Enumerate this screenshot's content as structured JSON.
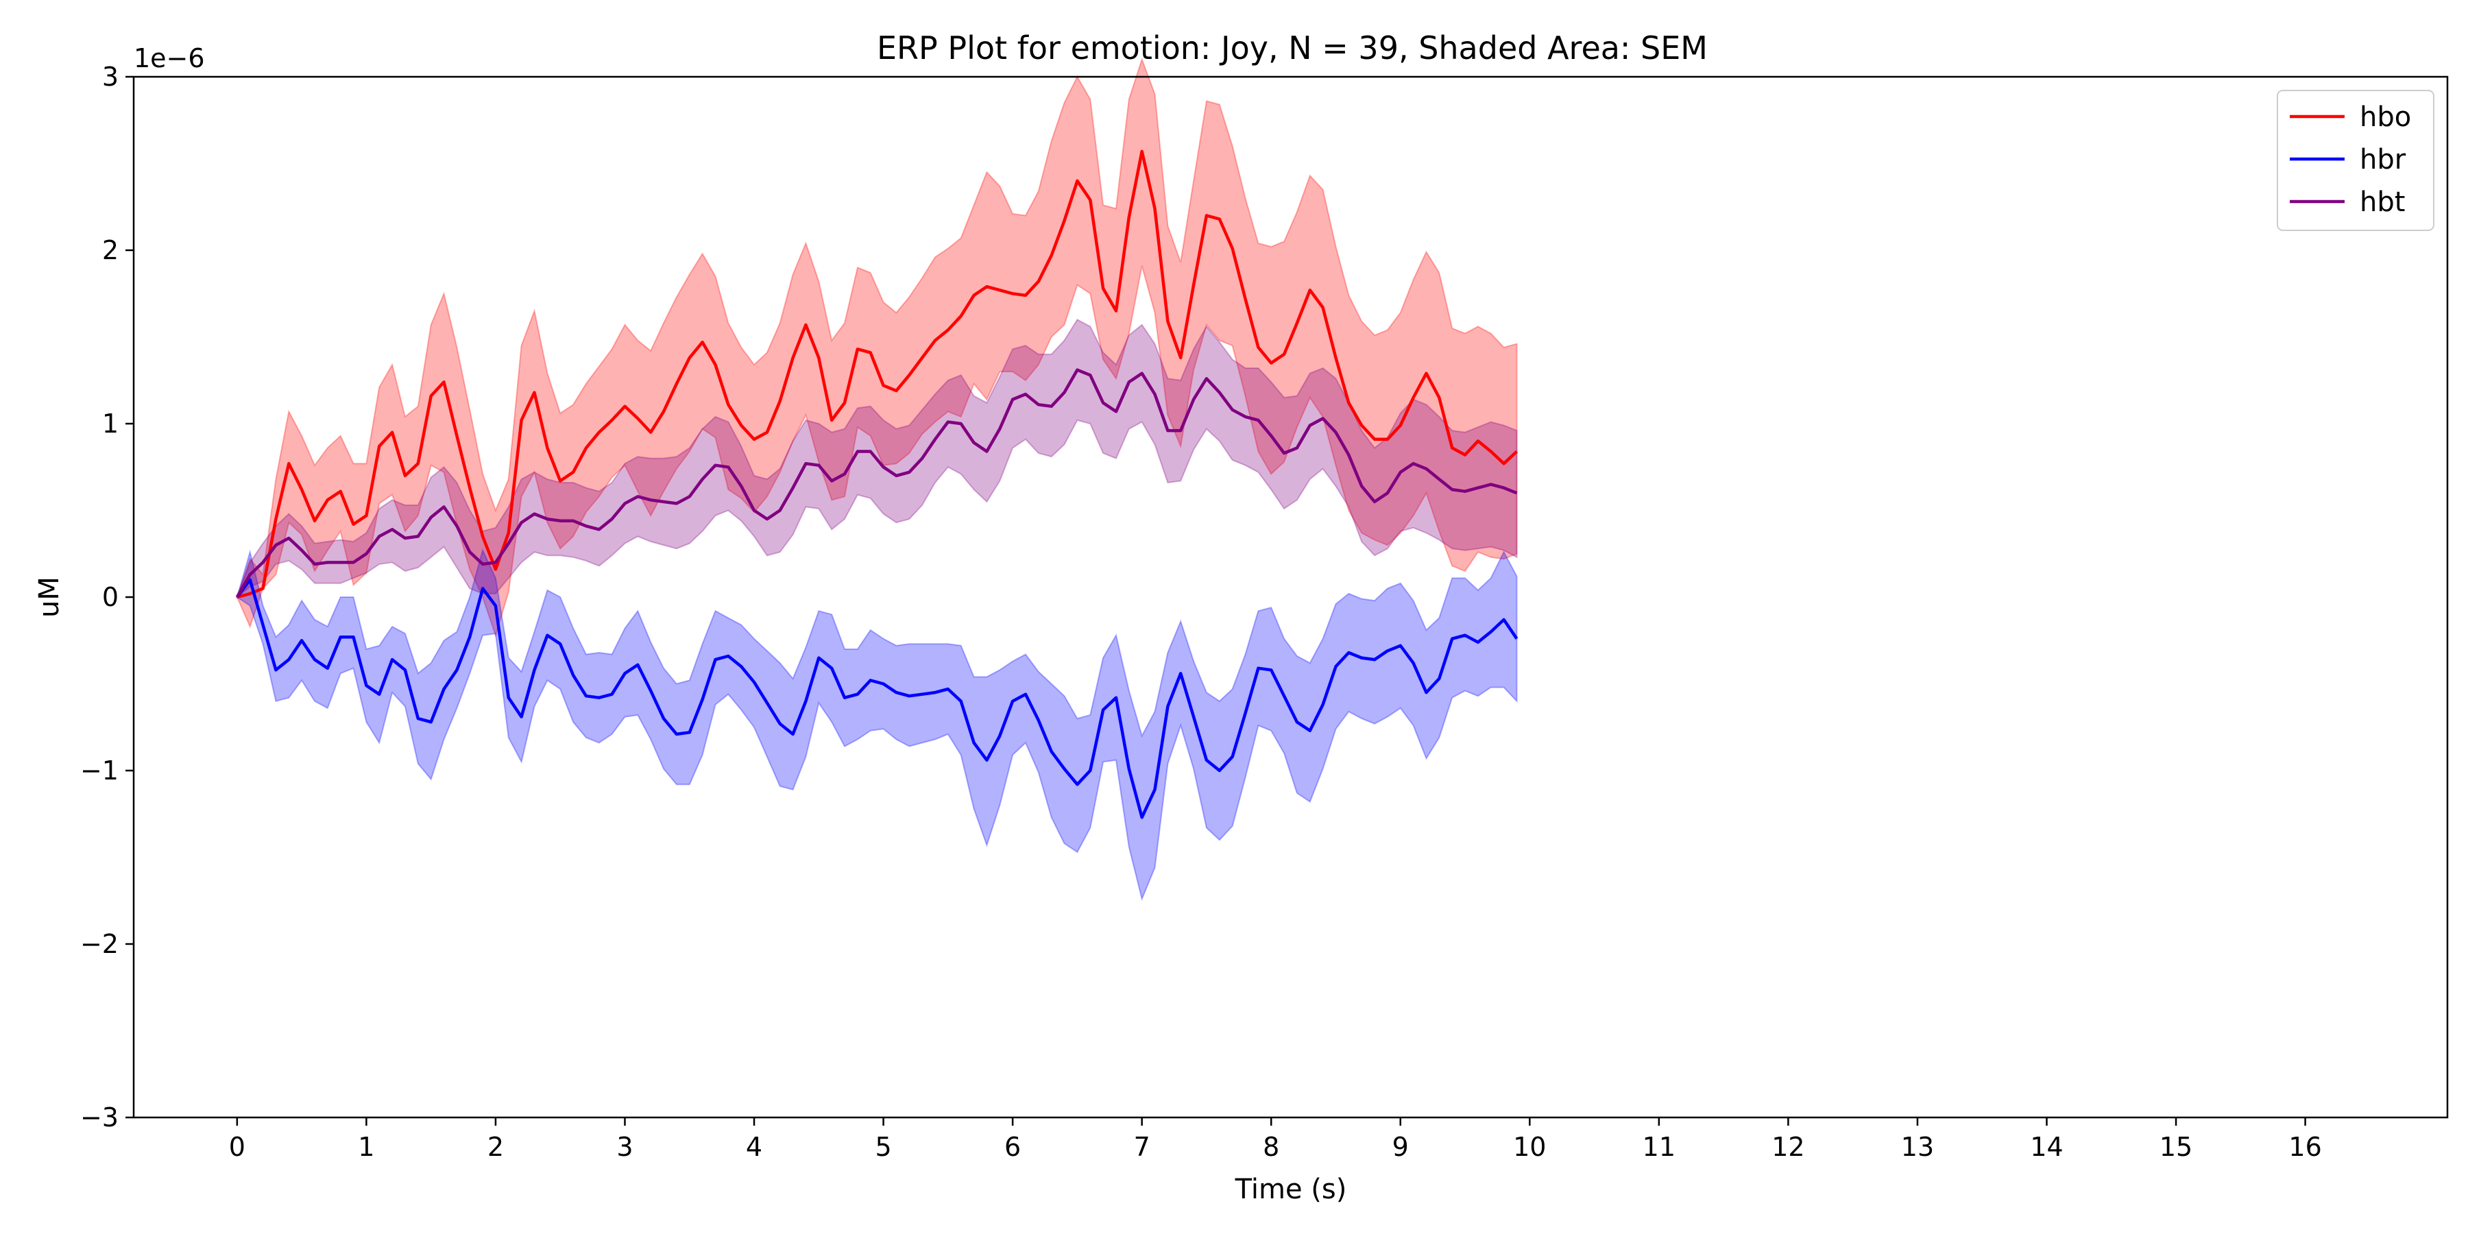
{
  "chart_data": {
    "type": "line",
    "title": "ERP Plot for emotion: Joy, N = 39, Shaded Area: SEM",
    "xlabel": "Time (s)",
    "ylabel": "uM",
    "y_offset_label": "1e−6",
    "xlim": [
      -0.8,
      17.1
    ],
    "ylim": [
      -3,
      3
    ],
    "x_ticks": [
      0,
      1,
      2,
      3,
      4,
      5,
      6,
      7,
      8,
      9,
      10,
      11,
      12,
      13,
      14,
      15,
      16
    ],
    "x_tick_labels": [
      "0",
      "1",
      "2",
      "3",
      "4",
      "5",
      "6",
      "7",
      "8",
      "9",
      "10",
      "11",
      "12",
      "13",
      "14",
      "15",
      "16"
    ],
    "y_ticks": [
      -3,
      -2,
      -1,
      0,
      1,
      2,
      3
    ],
    "y_tick_labels": [
      "−3",
      "−2",
      "−1",
      "0",
      "1",
      "2",
      "3"
    ],
    "grid": false,
    "legend_position": "top-right",
    "x_start": 0,
    "x_step": 0.1,
    "series": [
      {
        "name": "hbo",
        "color": "#ff0000",
        "mean": [
          0,
          0.02,
          0.05,
          0.45,
          0.77,
          0.62,
          0.44,
          0.56,
          0.61,
          0.42,
          0.47,
          0.87,
          0.95,
          0.7,
          0.77,
          1.16,
          1.24,
          0.93,
          0.63,
          0.35,
          0.16,
          0.37,
          1.02,
          1.18,
          0.86,
          0.67,
          0.72,
          0.86,
          0.95,
          1.02,
          1.1,
          1.03,
          0.95,
          1.07,
          1.23,
          1.38,
          1.47,
          1.34,
          1.11,
          0.99,
          0.91,
          0.95,
          1.13,
          1.38,
          1.57,
          1.38,
          1.02,
          1.12,
          1.43,
          1.41,
          1.22,
          1.19,
          1.28,
          1.38,
          1.48,
          1.54,
          1.62,
          1.74,
          1.79,
          1.77,
          1.75,
          1.74,
          1.82,
          1.97,
          2.17,
          2.4,
          2.29,
          1.78,
          1.65,
          2.19,
          2.57,
          2.24,
          1.59,
          1.38,
          1.8,
          2.2,
          2.18,
          2.01,
          1.72,
          1.44,
          1.35,
          1.4,
          1.58,
          1.77,
          1.67,
          1.38,
          1.12,
          0.99,
          0.91,
          0.91,
          0.99,
          1.15,
          1.29,
          1.15,
          0.86,
          0.82,
          0.9,
          0.84,
          0.77,
          0.84
        ],
        "lower": [
          0,
          -0.17,
          0.05,
          0.13,
          0.43,
          0.36,
          0.15,
          0.27,
          0.38,
          0.07,
          0.14,
          0.54,
          0.59,
          0.38,
          0.47,
          0.76,
          0.72,
          0.42,
          0.16,
          0.0,
          -0.22,
          0.03,
          0.58,
          0.72,
          0.43,
          0.28,
          0.35,
          0.49,
          0.58,
          0.69,
          0.76,
          0.61,
          0.47,
          0.61,
          0.74,
          0.84,
          0.97,
          0.92,
          0.62,
          0.57,
          0.49,
          0.58,
          0.72,
          0.9,
          1.05,
          0.78,
          0.56,
          0.58,
          0.98,
          0.93,
          0.76,
          0.77,
          0.83,
          0.94,
          1.01,
          1.07,
          1.04,
          1.23,
          1.14,
          1.3,
          1.3,
          1.25,
          1.34,
          1.5,
          1.57,
          1.8,
          1.75,
          1.37,
          1.26,
          1.52,
          1.91,
          1.64,
          1.05,
          0.87,
          1.31,
          1.57,
          1.48,
          1.45,
          1.16,
          0.84,
          0.71,
          0.78,
          0.98,
          1.15,
          1.04,
          0.76,
          0.5,
          0.37,
          0.33,
          0.3,
          0.37,
          0.47,
          0.6,
          0.38,
          0.18,
          0.15,
          0.26,
          0.23,
          0.22,
          0.25
        ],
        "upper": [
          0,
          0.22,
          0.13,
          0.68,
          1.07,
          0.93,
          0.76,
          0.86,
          0.93,
          0.77,
          0.77,
          1.21,
          1.34,
          1.04,
          1.1,
          1.57,
          1.75,
          1.44,
          1.08,
          0.71,
          0.5,
          0.68,
          1.45,
          1.65,
          1.29,
          1.06,
          1.11,
          1.23,
          1.33,
          1.43,
          1.57,
          1.48,
          1.42,
          1.58,
          1.73,
          1.86,
          1.98,
          1.85,
          1.58,
          1.44,
          1.34,
          1.41,
          1.58,
          1.86,
          2.04,
          1.82,
          1.48,
          1.58,
          1.9,
          1.87,
          1.7,
          1.64,
          1.73,
          1.84,
          1.96,
          2.01,
          2.07,
          2.26,
          2.45,
          2.37,
          2.21,
          2.2,
          2.34,
          2.63,
          2.85,
          3.0,
          2.87,
          2.26,
          2.24,
          2.87,
          3.1,
          2.9,
          2.14,
          1.93,
          2.4,
          2.86,
          2.84,
          2.6,
          2.3,
          2.04,
          2.02,
          2.05,
          2.22,
          2.43,
          2.35,
          2.02,
          1.74,
          1.59,
          1.51,
          1.54,
          1.64,
          1.83,
          1.99,
          1.87,
          1.55,
          1.52,
          1.56,
          1.52,
          1.44,
          1.46
        ]
      },
      {
        "name": "hbr",
        "color": "#0000ff",
        "mean": [
          0,
          0.1,
          -0.16,
          -0.42,
          -0.36,
          -0.25,
          -0.36,
          -0.41,
          -0.23,
          -0.23,
          -0.51,
          -0.56,
          -0.36,
          -0.42,
          -0.7,
          -0.72,
          -0.53,
          -0.42,
          -0.23,
          0.05,
          -0.05,
          -0.58,
          -0.69,
          -0.42,
          -0.22,
          -0.27,
          -0.45,
          -0.57,
          -0.58,
          -0.56,
          -0.44,
          -0.39,
          -0.54,
          -0.7,
          -0.79,
          -0.78,
          -0.59,
          -0.36,
          -0.34,
          -0.4,
          -0.49,
          -0.61,
          -0.73,
          -0.79,
          -0.6,
          -0.35,
          -0.41,
          -0.58,
          -0.56,
          -0.48,
          -0.5,
          -0.55,
          -0.57,
          -0.56,
          -0.55,
          -0.53,
          -0.6,
          -0.84,
          -0.94,
          -0.8,
          -0.6,
          -0.56,
          -0.71,
          -0.89,
          -0.99,
          -1.08,
          -1.0,
          -0.65,
          -0.58,
          -0.99,
          -1.27,
          -1.11,
          -0.63,
          -0.44,
          -0.69,
          -0.94,
          -1.0,
          -0.92,
          -0.67,
          -0.41,
          -0.42,
          -0.57,
          -0.72,
          -0.77,
          -0.62,
          -0.4,
          -0.32,
          -0.35,
          -0.36,
          -0.31,
          -0.28,
          -0.38,
          -0.55,
          -0.47,
          -0.24,
          -0.22,
          -0.26,
          -0.2,
          -0.13,
          -0.24
        ],
        "lower": [
          0,
          -0.05,
          -0.27,
          -0.6,
          -0.58,
          -0.48,
          -0.6,
          -0.64,
          -0.44,
          -0.41,
          -0.72,
          -0.84,
          -0.55,
          -0.63,
          -0.96,
          -1.05,
          -0.82,
          -0.64,
          -0.44,
          -0.22,
          -0.21,
          -0.81,
          -0.95,
          -0.63,
          -0.48,
          -0.53,
          -0.72,
          -0.81,
          -0.84,
          -0.79,
          -0.69,
          -0.68,
          -0.82,
          -0.99,
          -1.08,
          -1.08,
          -0.91,
          -0.62,
          -0.56,
          -0.65,
          -0.75,
          -0.92,
          -1.09,
          -1.11,
          -0.92,
          -0.61,
          -0.72,
          -0.86,
          -0.82,
          -0.77,
          -0.76,
          -0.82,
          -0.86,
          -0.84,
          -0.82,
          -0.79,
          -0.91,
          -1.22,
          -1.43,
          -1.2,
          -0.91,
          -0.84,
          -1.01,
          -1.27,
          -1.42,
          -1.47,
          -1.33,
          -0.95,
          -0.94,
          -1.44,
          -1.74,
          -1.56,
          -0.96,
          -0.74,
          -0.99,
          -1.33,
          -1.4,
          -1.32,
          -1.04,
          -0.74,
          -0.77,
          -0.9,
          -1.13,
          -1.18,
          -0.99,
          -0.76,
          -0.66,
          -0.7,
          -0.73,
          -0.69,
          -0.64,
          -0.74,
          -0.93,
          -0.81,
          -0.58,
          -0.54,
          -0.57,
          -0.52,
          -0.52,
          -0.6
        ],
        "upper": [
          0,
          0.26,
          -0.05,
          -0.23,
          -0.16,
          -0.02,
          -0.13,
          -0.17,
          0.0,
          0.0,
          -0.3,
          -0.28,
          -0.17,
          -0.21,
          -0.44,
          -0.38,
          -0.25,
          -0.2,
          0.0,
          0.27,
          0.11,
          -0.35,
          -0.43,
          -0.2,
          0.04,
          0.0,
          -0.18,
          -0.33,
          -0.32,
          -0.33,
          -0.18,
          -0.08,
          -0.26,
          -0.41,
          -0.5,
          -0.48,
          -0.27,
          -0.08,
          -0.12,
          -0.16,
          -0.24,
          -0.31,
          -0.38,
          -0.47,
          -0.29,
          -0.08,
          -0.1,
          -0.3,
          -0.3,
          -0.19,
          -0.24,
          -0.28,
          -0.27,
          -0.27,
          -0.27,
          -0.27,
          -0.28,
          -0.46,
          -0.46,
          -0.42,
          -0.37,
          -0.33,
          -0.43,
          -0.5,
          -0.57,
          -0.7,
          -0.68,
          -0.35,
          -0.22,
          -0.54,
          -0.8,
          -0.66,
          -0.32,
          -0.14,
          -0.37,
          -0.55,
          -0.6,
          -0.53,
          -0.33,
          -0.08,
          -0.06,
          -0.24,
          -0.34,
          -0.38,
          -0.24,
          -0.04,
          0.02,
          -0.01,
          -0.02,
          0.05,
          0.08,
          -0.02,
          -0.19,
          -0.12,
          0.11,
          0.11,
          0.04,
          0.11,
          0.26,
          0.12
        ]
      },
      {
        "name": "hbt",
        "color": "#800080",
        "mean": [
          0,
          0.13,
          0.2,
          0.3,
          0.34,
          0.27,
          0.19,
          0.2,
          0.2,
          0.2,
          0.25,
          0.35,
          0.39,
          0.34,
          0.35,
          0.46,
          0.52,
          0.41,
          0.26,
          0.19,
          0.2,
          0.31,
          0.43,
          0.48,
          0.45,
          0.44,
          0.44,
          0.41,
          0.39,
          0.45,
          0.54,
          0.58,
          0.56,
          0.55,
          0.54,
          0.58,
          0.68,
          0.76,
          0.75,
          0.64,
          0.5,
          0.45,
          0.5,
          0.63,
          0.77,
          0.76,
          0.67,
          0.71,
          0.84,
          0.84,
          0.75,
          0.7,
          0.72,
          0.8,
          0.91,
          1.01,
          1.0,
          0.89,
          0.84,
          0.97,
          1.14,
          1.17,
          1.11,
          1.1,
          1.18,
          1.31,
          1.28,
          1.12,
          1.07,
          1.24,
          1.29,
          1.17,
          0.96,
          0.96,
          1.14,
          1.26,
          1.18,
          1.08,
          1.04,
          1.02,
          0.93,
          0.83,
          0.86,
          0.99,
          1.03,
          0.95,
          0.82,
          0.64,
          0.55,
          0.6,
          0.72,
          0.77,
          0.74,
          0.68,
          0.62,
          0.61,
          0.63,
          0.65,
          0.63,
          0.6
        ],
        "lower": [
          0,
          0.06,
          0.09,
          0.19,
          0.21,
          0.16,
          0.08,
          0.08,
          0.08,
          0.11,
          0.14,
          0.19,
          0.2,
          0.15,
          0.17,
          0.23,
          0.29,
          0.17,
          0.05,
          0.02,
          0.02,
          0.11,
          0.2,
          0.26,
          0.24,
          0.24,
          0.23,
          0.21,
          0.18,
          0.24,
          0.31,
          0.35,
          0.32,
          0.3,
          0.28,
          0.31,
          0.38,
          0.47,
          0.5,
          0.44,
          0.35,
          0.24,
          0.26,
          0.36,
          0.52,
          0.51,
          0.39,
          0.45,
          0.59,
          0.57,
          0.48,
          0.43,
          0.45,
          0.53,
          0.66,
          0.75,
          0.71,
          0.62,
          0.55,
          0.67,
          0.86,
          0.91,
          0.83,
          0.81,
          0.88,
          1.02,
          1.0,
          0.83,
          0.8,
          0.97,
          1.01,
          0.88,
          0.66,
          0.67,
          0.85,
          0.97,
          0.9,
          0.79,
          0.76,
          0.72,
          0.62,
          0.51,
          0.56,
          0.68,
          0.74,
          0.64,
          0.52,
          0.32,
          0.24,
          0.28,
          0.38,
          0.4,
          0.37,
          0.33,
          0.28,
          0.27,
          0.28,
          0.29,
          0.27,
          0.23
        ],
        "upper": [
          0,
          0.2,
          0.31,
          0.41,
          0.48,
          0.41,
          0.31,
          0.32,
          0.33,
          0.32,
          0.37,
          0.51,
          0.56,
          0.53,
          0.53,
          0.69,
          0.75,
          0.66,
          0.5,
          0.38,
          0.4,
          0.52,
          0.68,
          0.72,
          0.68,
          0.66,
          0.66,
          0.63,
          0.61,
          0.66,
          0.77,
          0.81,
          0.8,
          0.8,
          0.81,
          0.86,
          0.97,
          1.04,
          1.01,
          0.87,
          0.7,
          0.68,
          0.74,
          0.9,
          1.02,
          1.0,
          0.95,
          0.97,
          1.09,
          1.1,
          1.02,
          0.97,
          0.99,
          1.08,
          1.17,
          1.25,
          1.28,
          1.16,
          1.12,
          1.27,
          1.43,
          1.45,
          1.4,
          1.4,
          1.48,
          1.6,
          1.56,
          1.41,
          1.34,
          1.51,
          1.57,
          1.46,
          1.26,
          1.25,
          1.43,
          1.56,
          1.47,
          1.37,
          1.32,
          1.32,
          1.24,
          1.15,
          1.16,
          1.29,
          1.32,
          1.26,
          1.12,
          0.96,
          0.86,
          0.92,
          1.06,
          1.14,
          1.11,
          1.04,
          0.96,
          0.95,
          0.98,
          1.01,
          0.99,
          0.96
        ]
      }
    ]
  }
}
